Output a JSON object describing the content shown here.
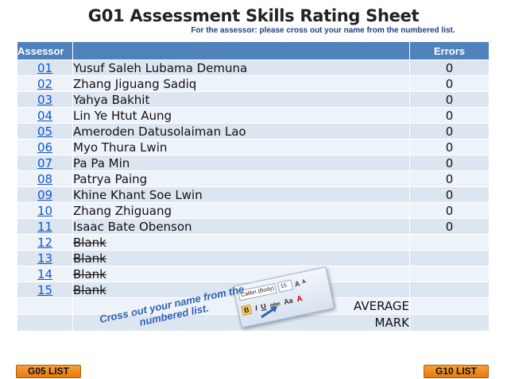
{
  "page": {
    "title": "G01 Assessment Skills Rating Sheet",
    "subtitle": "For the assessor: please cross out your name from the numbered list."
  },
  "table": {
    "headers": {
      "assessor": "Assessor",
      "name": "",
      "errors": "Errors"
    },
    "rows": [
      {
        "num": "01",
        "name": "Yusuf Saleh Lubama Demuna",
        "errors": "0",
        "struck": false
      },
      {
        "num": "02",
        "name": "Zhang Jiguang Sadiq",
        "errors": "0",
        "struck": false
      },
      {
        "num": "03",
        "name": "Yahya Bakhit",
        "errors": "0",
        "struck": false
      },
      {
        "num": "04",
        "name": "Lin Ye Htut Aung",
        "errors": "0",
        "struck": false
      },
      {
        "num": "05",
        "name": "Ameroden Datusolaiman Lao",
        "errors": "0",
        "struck": false
      },
      {
        "num": "06",
        "name": "Myo Thura Lwin",
        "errors": "0",
        "struck": false
      },
      {
        "num": "07",
        "name": "Pa Pa Min",
        "errors": "0",
        "struck": false
      },
      {
        "num": "08",
        "name": "Patrya Paing",
        "errors": "0",
        "struck": false
      },
      {
        "num": "09",
        "name": "Khine Khant Soe Lwin",
        "errors": "0",
        "struck": false
      },
      {
        "num": "10",
        "name": "Zhang Zhiguang",
        "errors": "0",
        "struck": false
      },
      {
        "num": "11",
        "name": "Isaac Bate Obenson",
        "errors": "0",
        "struck": false
      },
      {
        "num": "12",
        "name": "Blank",
        "errors": "",
        "struck": true
      },
      {
        "num": "13",
        "name": "Blank",
        "errors": "",
        "struck": true
      },
      {
        "num": "14",
        "name": "Blank",
        "errors": "",
        "struck": true
      },
      {
        "num": "15",
        "name": "Blank",
        "errors": "",
        "struck": true
      }
    ],
    "summary": {
      "average_label": "AVERAGE",
      "mark_label": "MARK"
    }
  },
  "toolbar_image": {
    "font_name": "Calibri (Body)",
    "font_size": "15",
    "grow_font": "A",
    "shrink_font": "A",
    "bold": "B",
    "italic": "I",
    "underline": "U",
    "strike": "abc",
    "case": "Aa",
    "font_color": "A"
  },
  "callout": {
    "line1": "Cross out your name from the",
    "line2": "numbered list."
  },
  "nav": {
    "prev_label": "G05 LIST",
    "next_label": "G10 LIST"
  },
  "colors": {
    "header_bg": "#4f81bd",
    "row_even": "#dce6f1",
    "row_odd": "#eef3fa",
    "link": "#1155cc",
    "nav_button": "#f28c28",
    "callout_text": "#2e62b4"
  }
}
